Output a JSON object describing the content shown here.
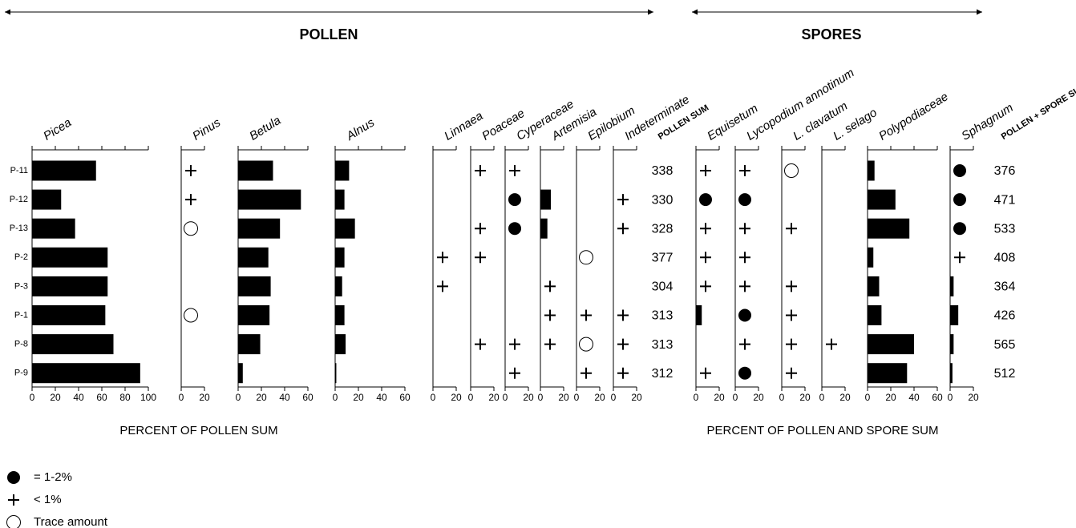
{
  "chart_data": {
    "type": "pollen_diagram",
    "groups": [
      "POLLEN",
      "SPORES"
    ],
    "samples": [
      "P-11",
      "P-12",
      "P-13",
      "P-2",
      "P-3",
      "P-1",
      "P-8",
      "P-9"
    ],
    "taxa": [
      {
        "name": "Picea",
        "group": 0,
        "xlim": [
          0,
          100
        ],
        "xticks": [
          0,
          20,
          40,
          60,
          80,
          100
        ],
        "values": [
          55,
          25,
          37,
          65,
          65,
          63,
          70,
          93
        ]
      },
      {
        "name": "Pinus",
        "group": 0,
        "xlim": [
          0,
          20
        ],
        "xticks": [
          0,
          20
        ],
        "values": [
          "plus",
          "plus",
          "open",
          null,
          null,
          "open",
          null,
          null
        ]
      },
      {
        "name": "Betula",
        "group": 0,
        "xlim": [
          0,
          60
        ],
        "xticks": [
          0,
          20,
          40,
          60
        ],
        "values": [
          30,
          54,
          36,
          26,
          28,
          27,
          19,
          4
        ]
      },
      {
        "name": "Alnus",
        "group": 0,
        "xlim": [
          0,
          60
        ],
        "xticks": [
          0,
          20,
          40,
          60
        ],
        "values": [
          12,
          8,
          17,
          8,
          6,
          8,
          9,
          1
        ]
      },
      {
        "name": "Linnaea",
        "group": 0,
        "xlim": [
          0,
          20
        ],
        "xticks": [
          0,
          20
        ],
        "values": [
          null,
          null,
          null,
          "plus",
          "plus",
          null,
          null,
          null
        ]
      },
      {
        "name": "Poaceae",
        "group": 0,
        "xlim": [
          0,
          20
        ],
        "xticks": [
          0,
          20
        ],
        "values": [
          "plus",
          null,
          "plus",
          "plus",
          null,
          null,
          "plus",
          null
        ]
      },
      {
        "name": "Cyperaceae",
        "group": 0,
        "xlim": [
          0,
          20
        ],
        "xticks": [
          0,
          20
        ],
        "values": [
          "plus",
          "filled",
          "filled",
          null,
          null,
          null,
          "plus",
          "plus"
        ]
      },
      {
        "name": "Artemisia",
        "group": 0,
        "xlim": [
          0,
          20
        ],
        "xticks": [
          0,
          20
        ],
        "values": [
          null,
          9,
          6,
          null,
          "plus",
          "plus",
          "plus",
          null
        ]
      },
      {
        "name": "Epilobium",
        "group": 0,
        "xlim": [
          0,
          20
        ],
        "xticks": [
          0,
          20
        ],
        "values": [
          null,
          null,
          null,
          "open",
          null,
          "plus",
          "open",
          "plus"
        ]
      },
      {
        "name": "Indeterminate",
        "group": 0,
        "xlim": [
          0,
          20
        ],
        "xticks": [
          0,
          20
        ],
        "values": [
          null,
          "plus",
          "plus",
          null,
          null,
          "plus",
          "plus",
          "plus"
        ]
      },
      {
        "name": "Equisetum",
        "group": 1,
        "xlim": [
          0,
          20
        ],
        "xticks": [
          0,
          20
        ],
        "values": [
          "plus",
          "filled",
          "plus",
          "plus",
          "plus",
          5,
          null,
          "plus"
        ]
      },
      {
        "name": "Lycopodium annotinum",
        "group": 1,
        "xlim": [
          0,
          20
        ],
        "xticks": [
          0,
          20
        ],
        "values": [
          "plus",
          "filled",
          "plus",
          "plus",
          "plus",
          "filled",
          "plus",
          "filled"
        ]
      },
      {
        "name": "L. clavatum",
        "group": 1,
        "xlim": [
          0,
          20
        ],
        "xticks": [
          0,
          20
        ],
        "values": [
          "open",
          null,
          "plus",
          null,
          "plus",
          "plus",
          "plus",
          "plus"
        ]
      },
      {
        "name": "L. selago",
        "group": 1,
        "xlim": [
          0,
          20
        ],
        "xticks": [
          0,
          20
        ],
        "values": [
          null,
          null,
          null,
          null,
          null,
          null,
          "plus",
          null
        ]
      },
      {
        "name": "Polypodiaceae",
        "group": 1,
        "xlim": [
          0,
          60
        ],
        "xticks": [
          0,
          20,
          40,
          60
        ],
        "values": [
          6,
          24,
          36,
          5,
          10,
          12,
          40,
          34
        ]
      },
      {
        "name": "Sphagnum",
        "group": 1,
        "xlim": [
          0,
          20
        ],
        "xticks": [
          0,
          20
        ],
        "values": [
          "filled",
          "filled",
          "filled",
          "plus",
          3,
          7,
          3,
          2
        ]
      }
    ],
    "pollen_sum": {
      "label": "POLLEN SUM",
      "values": [
        338,
        330,
        328,
        377,
        304,
        313,
        313,
        312
      ]
    },
    "total_sum": {
      "label": "POLLEN + SPORE SUM",
      "values": [
        376,
        471,
        533,
        408,
        364,
        426,
        565,
        512
      ]
    },
    "xlabels": [
      "PERCENT OF POLLEN SUM",
      "PERCENT OF POLLEN AND SPORE SUM"
    ],
    "legend": [
      {
        "symbol": "filled",
        "label": "= 1-2%"
      },
      {
        "symbol": "plus",
        "label": "< 1%"
      },
      {
        "symbol": "open",
        "label": "Trace amount"
      }
    ]
  }
}
